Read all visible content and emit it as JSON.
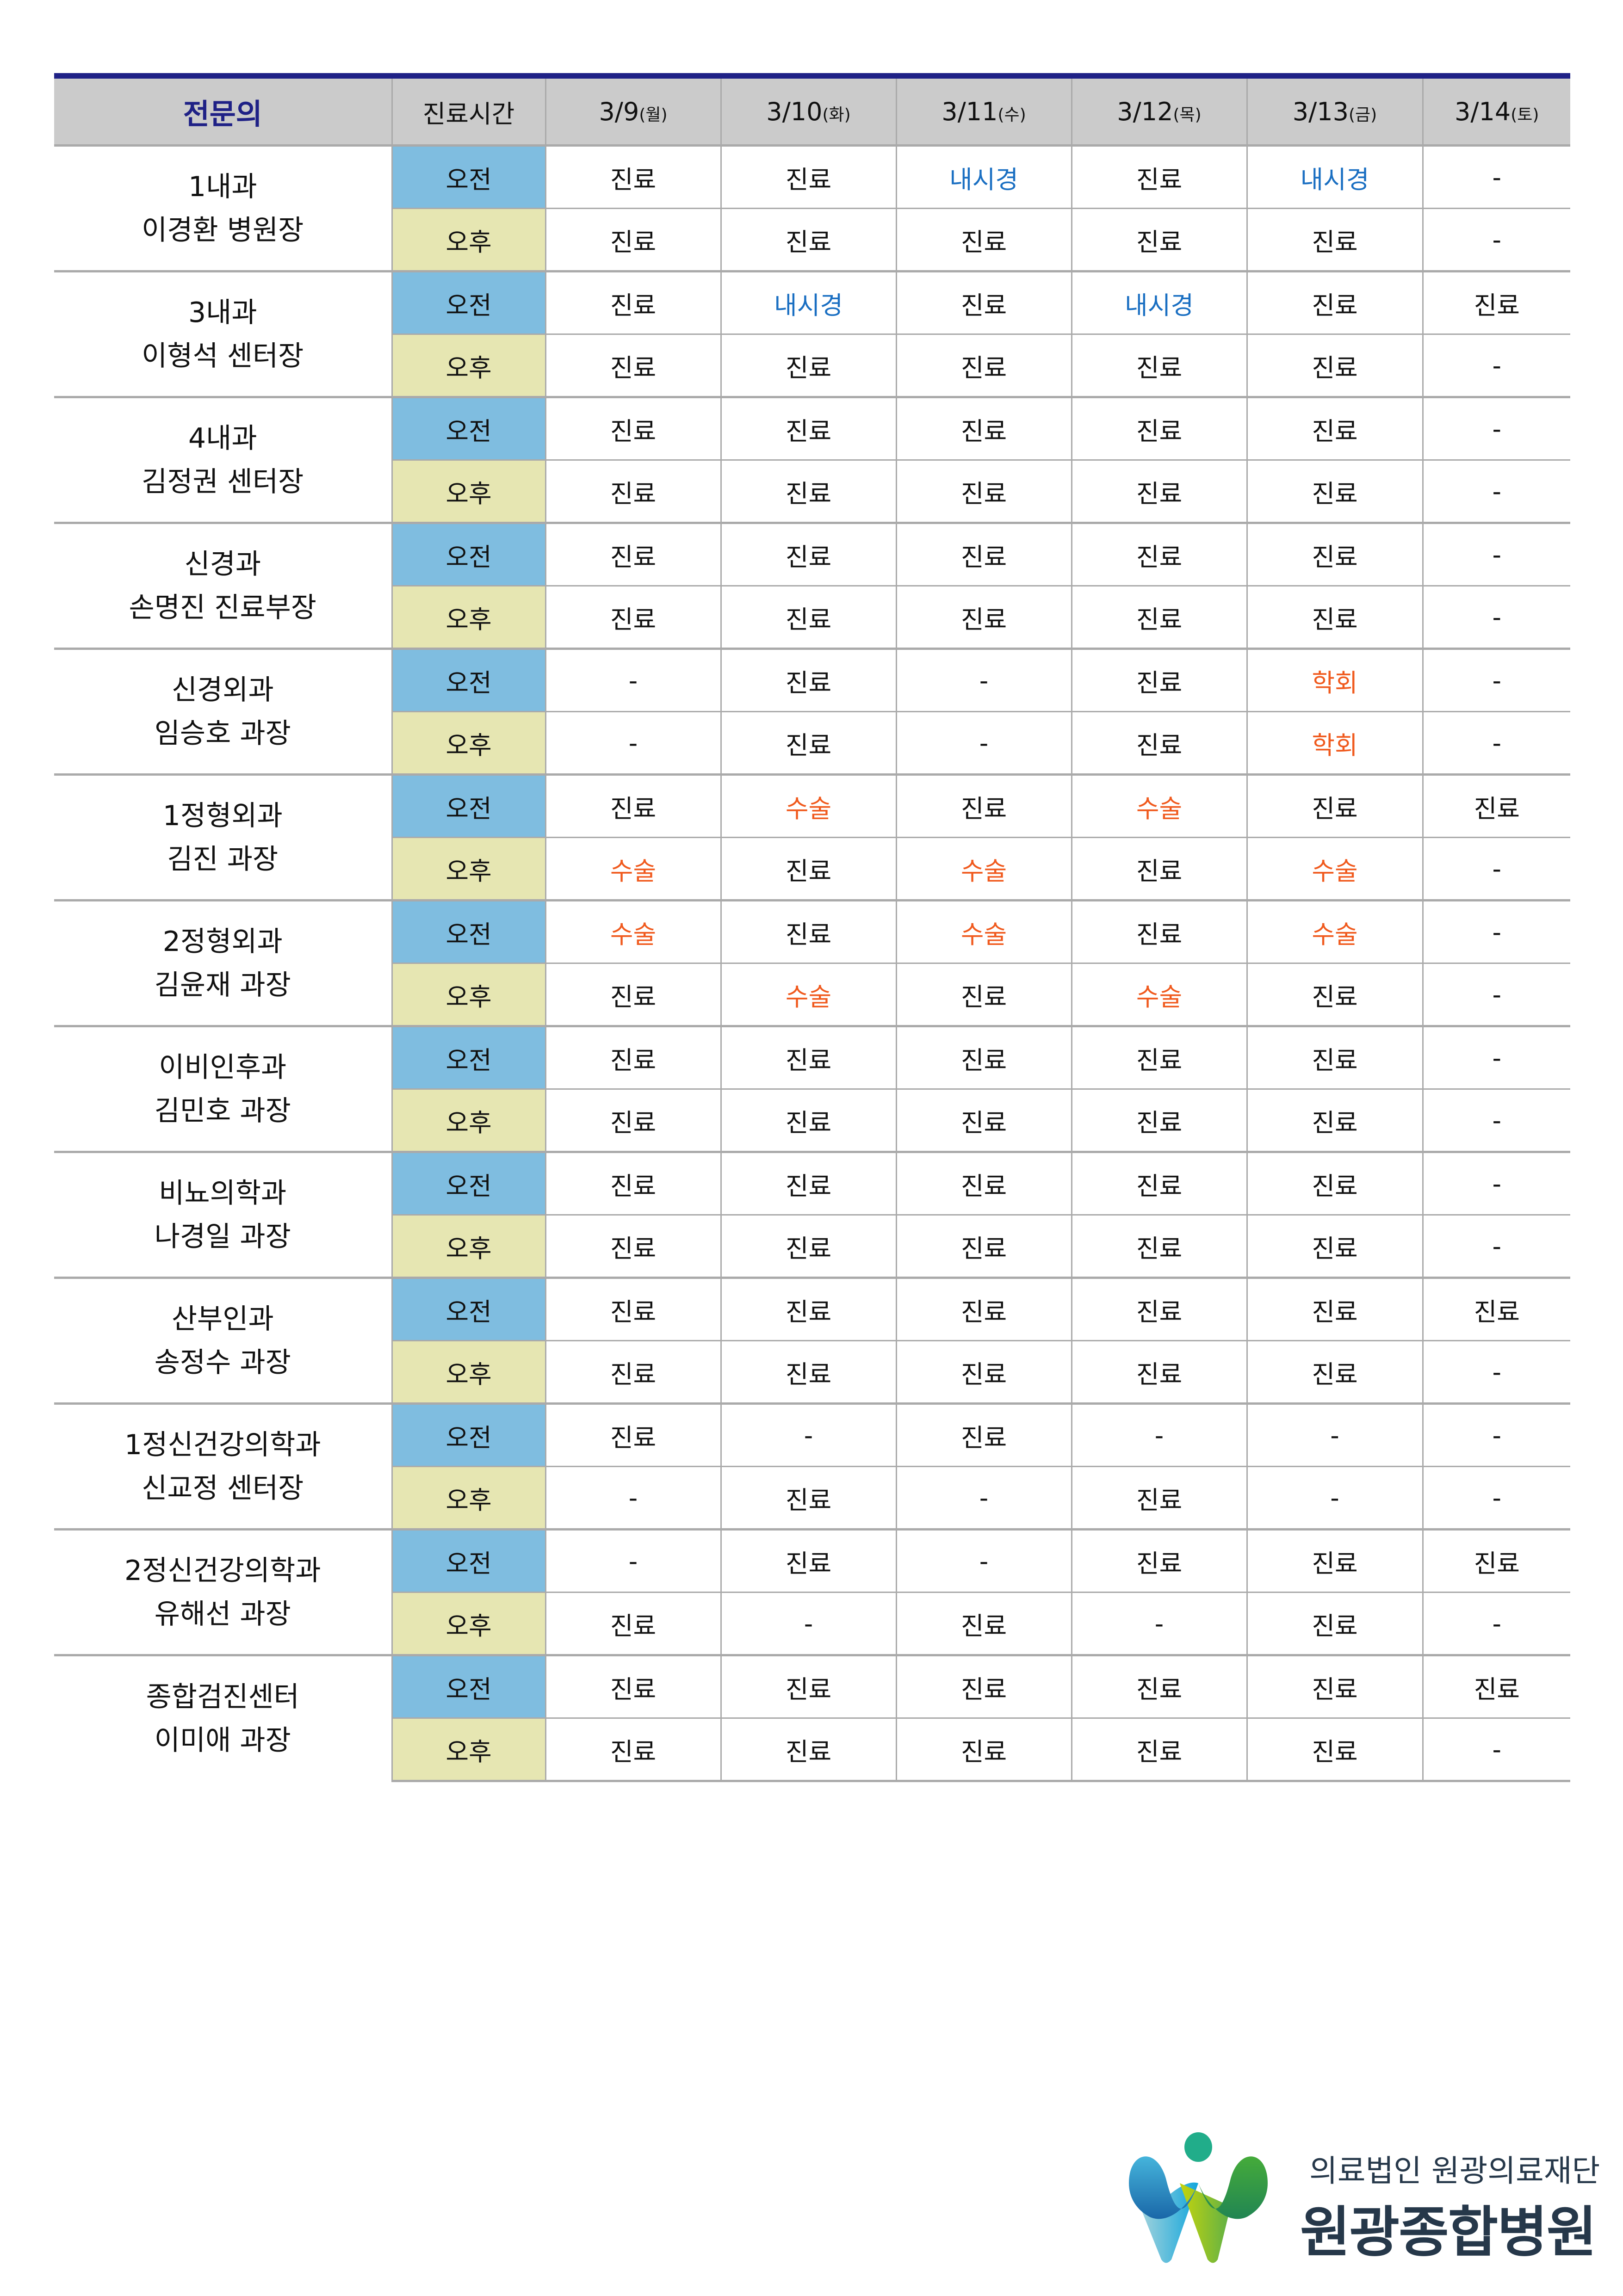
{
  "header": {
    "specialist": "전문의",
    "time": "진료시간",
    "dates": [
      {
        "date": "3/9",
        "day": "(월)"
      },
      {
        "date": "3/10",
        "day": "(화)"
      },
      {
        "date": "3/11",
        "day": "(수)"
      },
      {
        "date": "3/12",
        "day": "(목)"
      },
      {
        "date": "3/13",
        "day": "(금)"
      },
      {
        "date": "3/14",
        "day": "(토)"
      }
    ]
  },
  "labels": {
    "am": "오전",
    "pm": "오후"
  },
  "colors": {
    "accent": "#1f2186",
    "endoscopy": "#1a6fc2",
    "surgery": "#f05a1e",
    "am_bg": "#7fbde0",
    "pm_bg": "#e6e6b2",
    "header_bg": "#cbcbcb"
  },
  "doctors": [
    {
      "dept": "1내과",
      "name": "이경환 병원장",
      "am": [
        "진료",
        "진료",
        "내시경",
        "진료",
        "내시경",
        "-"
      ],
      "pm": [
        "진료",
        "진료",
        "진료",
        "진료",
        "진료",
        "-"
      ]
    },
    {
      "dept": "3내과",
      "name": "이형석 센터장",
      "am": [
        "진료",
        "내시경",
        "진료",
        "내시경",
        "진료",
        "진료"
      ],
      "pm": [
        "진료",
        "진료",
        "진료",
        "진료",
        "진료",
        "-"
      ]
    },
    {
      "dept": "4내과",
      "name": "김정권 센터장",
      "am": [
        "진료",
        "진료",
        "진료",
        "진료",
        "진료",
        "-"
      ],
      "pm": [
        "진료",
        "진료",
        "진료",
        "진료",
        "진료",
        "-"
      ]
    },
    {
      "dept": "신경과",
      "name": "손명진 진료부장",
      "am": [
        "진료",
        "진료",
        "진료",
        "진료",
        "진료",
        "-"
      ],
      "pm": [
        "진료",
        "진료",
        "진료",
        "진료",
        "진료",
        "-"
      ]
    },
    {
      "dept": "신경외과",
      "name": "임승호 과장",
      "am": [
        "-",
        "진료",
        "-",
        "진료",
        "학회",
        "-"
      ],
      "pm": [
        "-",
        "진료",
        "-",
        "진료",
        "학회",
        "-"
      ]
    },
    {
      "dept": "1정형외과",
      "name": "김진 과장",
      "am": [
        "진료",
        "수술",
        "진료",
        "수술",
        "진료",
        "진료"
      ],
      "pm": [
        "수술",
        "진료",
        "수술",
        "진료",
        "수술",
        "-"
      ]
    },
    {
      "dept": "2정형외과",
      "name": "김윤재 과장",
      "am": [
        "수술",
        "진료",
        "수술",
        "진료",
        "수술",
        "-"
      ],
      "pm": [
        "진료",
        "수술",
        "진료",
        "수술",
        "진료",
        "-"
      ]
    },
    {
      "dept": "이비인후과",
      "name": "김민호 과장",
      "am": [
        "진료",
        "진료",
        "진료",
        "진료",
        "진료",
        "-"
      ],
      "pm": [
        "진료",
        "진료",
        "진료",
        "진료",
        "진료",
        "-"
      ]
    },
    {
      "dept": "비뇨의학과",
      "name": "나경일 과장",
      "am": [
        "진료",
        "진료",
        "진료",
        "진료",
        "진료",
        "-"
      ],
      "pm": [
        "진료",
        "진료",
        "진료",
        "진료",
        "진료",
        "-"
      ]
    },
    {
      "dept": "산부인과",
      "name": "송정수 과장",
      "am": [
        "진료",
        "진료",
        "진료",
        "진료",
        "진료",
        "진료"
      ],
      "pm": [
        "진료",
        "진료",
        "진료",
        "진료",
        "진료",
        "-"
      ]
    },
    {
      "dept": "1정신건강의학과",
      "name": "신교정 센터장",
      "am": [
        "진료",
        "-",
        "진료",
        "-",
        "-",
        "-"
      ],
      "pm": [
        "-",
        "진료",
        "-",
        "진료",
        "-",
        "-"
      ]
    },
    {
      "dept": "2정신건강의학과",
      "name": "유해선 과장",
      "am": [
        "-",
        "진료",
        "-",
        "진료",
        "진료",
        "진료"
      ],
      "pm": [
        "진료",
        "-",
        "진료",
        "-",
        "진료",
        "-"
      ]
    },
    {
      "dept": "종합검진센터",
      "name": "이미애 과장",
      "am": [
        "진료",
        "진료",
        "진료",
        "진료",
        "진료",
        "진료"
      ],
      "pm": [
        "진료",
        "진료",
        "진료",
        "진료",
        "진료",
        "-"
      ]
    }
  ],
  "logo": {
    "foundation": "의료법인 원광의료재단",
    "hospital": "원광종합병원"
  }
}
